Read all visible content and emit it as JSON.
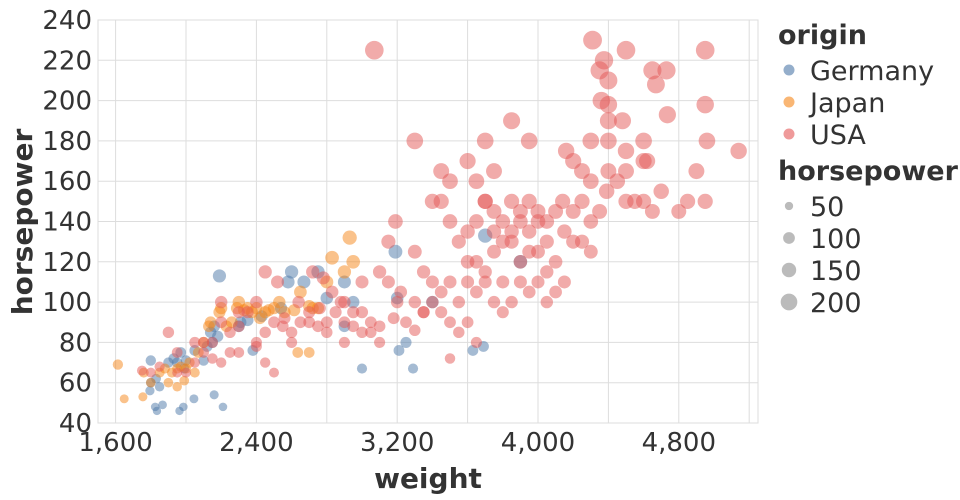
{
  "chart_data": {
    "type": "scatter",
    "x_field": "weight",
    "y_field": "horsepower",
    "xlabel": "weight",
    "ylabel": "horsepower",
    "xlim": [
      1500,
      5250
    ],
    "ylim": [
      40,
      240
    ],
    "x_ticks": [
      1600,
      2400,
      3200,
      4000,
      4800
    ],
    "x_tick_labels": [
      "1,600",
      "2,400",
      "3,200",
      "4,000",
      "4,800"
    ],
    "y_ticks": [
      40,
      60,
      80,
      100,
      120,
      140,
      160,
      180,
      200,
      220,
      240
    ],
    "y_tick_labels": [
      "40",
      "60",
      "80",
      "100",
      "120",
      "140",
      "160",
      "180",
      "200",
      "220",
      "240"
    ],
    "grid": true,
    "color_legend": {
      "title": "origin",
      "placement": "right",
      "entries": [
        {
          "label": "Germany",
          "color": "#4c78a8"
        },
        {
          "label": "Japan",
          "color": "#f58518"
        },
        {
          "label": "USA",
          "color": "#e45756"
        }
      ]
    },
    "size_legend": {
      "title": "horsepower",
      "placement": "right",
      "values": [
        50,
        100,
        150,
        200
      ],
      "labels": [
        "50",
        "100",
        "150",
        "200"
      ],
      "color": "#bbbbbb"
    },
    "point_opacity": 0.5,
    "series": [
      {
        "name": "Germany",
        "color": "#4c78a8",
        "points": [
          [
            1835,
            46
          ],
          [
            1825,
            48
          ],
          [
            1867,
            49
          ],
          [
            1963,
            46
          ],
          [
            1985,
            48
          ],
          [
            2045,
            52
          ],
          [
            2160,
            54
          ],
          [
            2210,
            48
          ],
          [
            1800,
            60
          ],
          [
            1795,
            56
          ],
          [
            1830,
            62
          ],
          [
            1850,
            58
          ],
          [
            1800,
            71
          ],
          [
            1930,
            72
          ],
          [
            1950,
            70
          ],
          [
            1990,
            67
          ],
          [
            2000,
            71
          ],
          [
            1900,
            70
          ],
          [
            1970,
            75
          ],
          [
            2050,
            76
          ],
          [
            2100,
            71
          ],
          [
            2120,
            78
          ],
          [
            2150,
            80
          ],
          [
            2180,
            83
          ],
          [
            2160,
            88
          ],
          [
            2140,
            85
          ],
          [
            2300,
            88
          ],
          [
            2310,
            90
          ],
          [
            2350,
            91
          ],
          [
            2380,
            76
          ],
          [
            2430,
            93
          ],
          [
            2540,
            97
          ],
          [
            2190,
            113
          ],
          [
            2580,
            110
          ],
          [
            2600,
            115
          ],
          [
            2670,
            110
          ],
          [
            2750,
            115
          ],
          [
            2900,
            110
          ],
          [
            2950,
            100
          ],
          [
            2800,
            102
          ],
          [
            2900,
            88
          ],
          [
            3000,
            67
          ],
          [
            3200,
            102
          ],
          [
            3210,
            76
          ],
          [
            3250,
            80
          ],
          [
            3290,
            67
          ],
          [
            3190,
            125
          ],
          [
            3400,
            100
          ],
          [
            3630,
            76
          ],
          [
            3690,
            78
          ],
          [
            3700,
            133
          ],
          [
            3900,
            120
          ]
        ]
      },
      {
        "name": "Japan",
        "color": "#f58518",
        "points": [
          [
            1613,
            69
          ],
          [
            1649,
            52
          ],
          [
            1755,
            53
          ],
          [
            1760,
            65
          ],
          [
            1800,
            60
          ],
          [
            1850,
            65
          ],
          [
            1900,
            60
          ],
          [
            1920,
            65
          ],
          [
            1950,
            67
          ],
          [
            1970,
            68
          ],
          [
            2000,
            67
          ],
          [
            2020,
            70
          ],
          [
            2050,
            65
          ],
          [
            1880,
            67
          ],
          [
            1950,
            58
          ],
          [
            1990,
            61
          ],
          [
            2070,
            75
          ],
          [
            2100,
            80
          ],
          [
            2130,
            88
          ],
          [
            2140,
            90
          ],
          [
            2190,
            95
          ],
          [
            2200,
            97
          ],
          [
            2230,
            88
          ],
          [
            2260,
            90
          ],
          [
            2290,
            97
          ],
          [
            2300,
            100
          ],
          [
            2330,
            96
          ],
          [
            2350,
            97
          ],
          [
            2375,
            95
          ],
          [
            2400,
            97
          ],
          [
            2420,
            92
          ],
          [
            2450,
            95
          ],
          [
            2470,
            96
          ],
          [
            2500,
            97
          ],
          [
            2530,
            100
          ],
          [
            2560,
            95
          ],
          [
            2615,
            96
          ],
          [
            2650,
            105
          ],
          [
            2700,
            98
          ],
          [
            2720,
            97
          ],
          [
            2750,
            97
          ],
          [
            2800,
            110
          ],
          [
            2830,
            122
          ],
          [
            2900,
            115
          ],
          [
            2950,
            120
          ],
          [
            2930,
            132
          ],
          [
            2635,
            75
          ],
          [
            2700,
            75
          ]
        ]
      },
      {
        "name": "USA",
        "color": "#e45756",
        "points": [
          [
            3070,
            225
          ],
          [
            4310,
            230
          ],
          [
            4375,
            220
          ],
          [
            4500,
            225
          ],
          [
            4950,
            225
          ],
          [
            4350,
            215
          ],
          [
            4400,
            210
          ],
          [
            4360,
            200
          ],
          [
            4400,
            198
          ],
          [
            4650,
            215
          ],
          [
            4670,
            208
          ],
          [
            4730,
            215
          ],
          [
            4950,
            198
          ],
          [
            4735,
            193
          ],
          [
            4400,
            190
          ],
          [
            4480,
            190
          ],
          [
            3850,
            190
          ],
          [
            4400,
            180
          ],
          [
            4500,
            175
          ],
          [
            4600,
            180
          ],
          [
            4600,
            170
          ],
          [
            4620,
            170
          ],
          [
            4960,
            180
          ],
          [
            5140,
            175
          ],
          [
            3300,
            180
          ],
          [
            3700,
            180
          ],
          [
            3750,
            165
          ],
          [
            3950,
            180
          ],
          [
            4160,
            175
          ],
          [
            4300,
            180
          ],
          [
            4200,
            170
          ],
          [
            4250,
            165
          ],
          [
            4300,
            160
          ],
          [
            4400,
            165
          ],
          [
            4450,
            160
          ],
          [
            4390,
            155
          ],
          [
            4500,
            165
          ],
          [
            4500,
            150
          ],
          [
            4550,
            150
          ],
          [
            4600,
            150
          ],
          [
            4650,
            145
          ],
          [
            4700,
            155
          ],
          [
            4800,
            145
          ],
          [
            4850,
            150
          ],
          [
            4900,
            165
          ],
          [
            4950,
            150
          ],
          [
            3450,
            165
          ],
          [
            3500,
            160
          ],
          [
            3600,
            170
          ],
          [
            3650,
            160
          ],
          [
            3700,
            150
          ],
          [
            3750,
            145
          ],
          [
            3800,
            140
          ],
          [
            3850,
            150
          ],
          [
            3900,
            145
          ],
          [
            3950,
            150
          ],
          [
            4000,
            145
          ],
          [
            4050,
            140
          ],
          [
            4100,
            145
          ],
          [
            4140,
            150
          ],
          [
            4200,
            145
          ],
          [
            4250,
            150
          ],
          [
            4300,
            140
          ],
          [
            4350,
            145
          ],
          [
            3400,
            150
          ],
          [
            3450,
            150
          ],
          [
            3500,
            140
          ],
          [
            3550,
            130
          ],
          [
            3600,
            135
          ],
          [
            3650,
            140
          ],
          [
            3700,
            150
          ],
          [
            3750,
            135
          ],
          [
            3800,
            130
          ],
          [
            3850,
            135
          ],
          [
            3900,
            140
          ],
          [
            3950,
            135
          ],
          [
            4000,
            140
          ],
          [
            4050,
            130
          ],
          [
            4150,
            135
          ],
          [
            4250,
            130
          ],
          [
            3150,
            130
          ],
          [
            3190,
            140
          ],
          [
            3300,
            125
          ],
          [
            3350,
            115
          ],
          [
            3400,
            110
          ],
          [
            3450,
            105
          ],
          [
            3500,
            110
          ],
          [
            3550,
            100
          ],
          [
            3600,
            110
          ],
          [
            3650,
            105
          ],
          [
            3700,
            110
          ],
          [
            3750,
            100
          ],
          [
            3800,
            95
          ],
          [
            3850,
            100
          ],
          [
            3900,
            110
          ],
          [
            3950,
            105
          ],
          [
            4000,
            110
          ],
          [
            4050,
            100
          ],
          [
            4100,
            105
          ],
          [
            3300,
            100
          ],
          [
            3350,
            95
          ],
          [
            3400,
            100
          ],
          [
            3450,
            95
          ],
          [
            3500,
            90
          ],
          [
            3550,
            85
          ],
          [
            3600,
            90
          ],
          [
            3650,
            80
          ],
          [
            3500,
            72
          ],
          [
            3150,
            110
          ],
          [
            3100,
            115
          ],
          [
            3000,
            110
          ],
          [
            2950,
            95
          ],
          [
            2900,
            100
          ],
          [
            2850,
            95
          ],
          [
            2800,
            90
          ],
          [
            2750,
            88
          ],
          [
            2700,
            95
          ],
          [
            2650,
            90
          ],
          [
            2600,
            85
          ],
          [
            2550,
            88
          ],
          [
            2500,
            90
          ],
          [
            2450,
            85
          ],
          [
            2400,
            100
          ],
          [
            2350,
            95
          ],
          [
            2300,
            88
          ],
          [
            2250,
            85
          ],
          [
            2200,
            90
          ],
          [
            2150,
            80
          ],
          [
            2100,
            75
          ],
          [
            2050,
            70
          ],
          [
            2000,
            65
          ],
          [
            1950,
            65
          ],
          [
            2100,
            80
          ],
          [
            2200,
            70
          ],
          [
            2300,
            75
          ],
          [
            2400,
            80
          ],
          [
            2450,
            70
          ],
          [
            2500,
            65
          ],
          [
            2600,
            80
          ],
          [
            2700,
            90
          ],
          [
            2800,
            85
          ],
          [
            2900,
            90
          ],
          [
            3000,
            95
          ],
          [
            3050,
            90
          ],
          [
            3100,
            88
          ],
          [
            3200,
            100
          ],
          [
            3250,
            90
          ],
          [
            3300,
            86
          ],
          [
            3350,
            95
          ],
          [
            3100,
            80
          ],
          [
            3050,
            85
          ],
          [
            2950,
            88
          ],
          [
            3180,
            92
          ],
          [
            3220,
            105
          ],
          [
            2880,
            100
          ],
          [
            2760,
            97
          ],
          [
            2640,
            100
          ],
          [
            2780,
            112
          ],
          [
            2830,
            105
          ],
          [
            2720,
            115
          ],
          [
            2450,
            115
          ],
          [
            2520,
            110
          ],
          [
            2560,
            92
          ],
          [
            2400,
            78
          ],
          [
            2250,
            75
          ],
          [
            2150,
            72
          ],
          [
            2050,
            80
          ],
          [
            1900,
            85
          ],
          [
            1850,
            68
          ],
          [
            1800,
            65
          ],
          [
            1750,
            66
          ],
          [
            1950,
            75
          ],
          [
            2200,
            100
          ],
          [
            2300,
            95
          ],
          [
            3000,
            85
          ],
          [
            2900,
            80
          ],
          [
            3600,
            120
          ],
          [
            3700,
            115
          ],
          [
            3800,
            110
          ],
          [
            3900,
            120
          ],
          [
            4000,
            125
          ],
          [
            4100,
            120
          ],
          [
            4200,
            130
          ],
          [
            4300,
            125
          ],
          [
            4150,
            110
          ],
          [
            4050,
            115
          ],
          [
            3950,
            125
          ],
          [
            3850,
            130
          ],
          [
            3750,
            125
          ],
          [
            3650,
            120
          ]
        ]
      }
    ]
  }
}
